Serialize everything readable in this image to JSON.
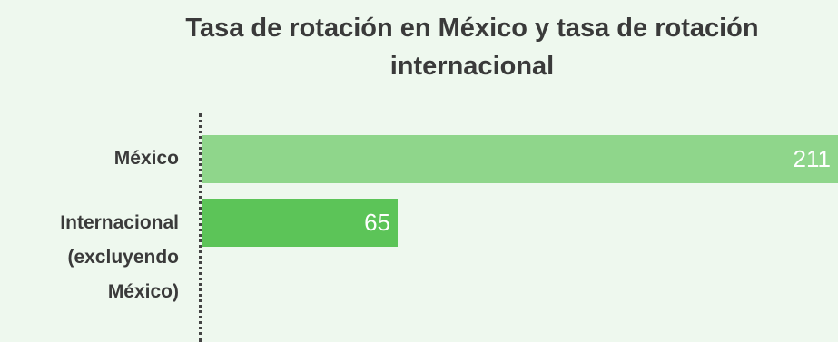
{
  "chart_data": {
    "type": "bar",
    "orientation": "horizontal",
    "title": "Tasa de rotación en México y tasa de rotación internacional",
    "categories": [
      "México",
      "Internacional (excluyendo México)"
    ],
    "values": [
      211,
      65
    ],
    "value_labels": [
      "211",
      "65"
    ],
    "colors": [
      "#8fd68b",
      "#5cc458"
    ],
    "xlim": [
      0,
      211
    ],
    "grid": false,
    "legend": "none"
  }
}
